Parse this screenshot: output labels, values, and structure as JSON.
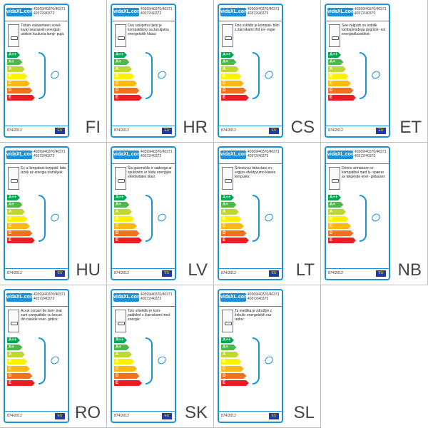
{
  "labels": [
    {
      "lang": "FI",
      "codes": "40369/40370/40371 40372/40373",
      "logo": "vidaXL.com",
      "desc": "Tähän valaisimeen sovel- tuvat seuraaviin energiat- uokkiin kuuluvia lamp- puja:",
      "reg": "874/2012",
      "eu": "EU",
      "classes": [
        "A++",
        "A+",
        "A",
        "B",
        "C",
        "D",
        "E"
      ]
    },
    {
      "lang": "HR",
      "codes": "40369/40370/40371 40372/40373",
      "logo": "vidaXL.com",
      "desc": "Ovo rasvjetno tijelo je kompatibilno sa žaruljama energetskih klasa:",
      "reg": "874/2012",
      "eu": "EU",
      "classes": [
        "A++",
        "A+",
        "A",
        "B",
        "C",
        "D",
        "E"
      ]
    },
    {
      "lang": "CS",
      "codes": "40369/40370/40371 40372/40373",
      "logo": "vidaXL.com",
      "desc": "Toto svítidlo je kompati- bilní s žárovkami tříd en- ergie:",
      "reg": "874/2012",
      "eu": "EU",
      "classes": [
        "A++",
        "A+",
        "A",
        "B",
        "C",
        "D",
        "E"
      ]
    },
    {
      "lang": "ET",
      "codes": "40369/40370/40371 40372/40373",
      "logo": "vidaXL.com",
      "desc": "See valgusti on sobilik lambipirnidega järgmist- est energiaklassidest:",
      "reg": "874/2012",
      "eu": "EU",
      "classes": [
        "A++",
        "A+",
        "A",
        "B",
        "C",
        "D",
        "E"
      ]
    },
    {
      "lang": "HU",
      "codes": "40369/40370/40371 40372/40373",
      "logo": "vidaXL.com",
      "desc": "Ez a lámpatest kompati- bilis izzók az energia osztályok:",
      "reg": "874/2012",
      "eu": "EU",
      "classes": [
        "A++",
        "A+",
        "A",
        "B",
        "C",
        "D",
        "E"
      ]
    },
    {
      "lang": "LV",
      "codes": "40369/40370/40371 40372/40373",
      "logo": "vidaXL.com",
      "desc": "Šis gaismeklis ir saderigs ar spuldzēm ar šādu enerģijas efektivitātes klasi:",
      "reg": "874/2012",
      "eu": "EU",
      "classes": [
        "A++",
        "A+",
        "A",
        "B",
        "C",
        "D",
        "E"
      ]
    },
    {
      "lang": "LT",
      "codes": "40369/40370/40371 40372/40373",
      "logo": "vidaXL.com",
      "desc": "Šviestuvui tinka šios en- ergijos efektyvumo klasės lemputės:",
      "reg": "874/2012",
      "eu": "EU",
      "classes": [
        "A++",
        "A+",
        "A",
        "B",
        "C",
        "D",
        "E"
      ]
    },
    {
      "lang": "NB",
      "codes": "40369/40370/40371 40372/40373",
      "logo": "vidaXL.com",
      "desc": "Denne armaturen er kompatibel med ly- spærer av følgende ener- giklasser:",
      "reg": "874/2012",
      "eu": "EU",
      "classes": [
        "A++",
        "A+",
        "A",
        "B",
        "C",
        "D",
        "E"
      ]
    },
    {
      "lang": "RO",
      "codes": "40369/40370/40371 40372/40373",
      "logo": "vidaXL.com",
      "desc": "Acest corpuri de ilum- inat sunt compatibile cu becuri din clasele ener- getice:",
      "reg": "874/2012",
      "eu": "EU",
      "classes": [
        "A++",
        "A+",
        "A",
        "B",
        "C",
        "D",
        "E"
      ]
    },
    {
      "lang": "SK",
      "codes": "40369/40370/40371 40372/40373",
      "logo": "vidaXL.com",
      "desc": "Toto svietidlo je kom- patibilné s žiarovkami tried energie:",
      "reg": "874/2012",
      "eu": "EU",
      "classes": [
        "A++",
        "A+",
        "A",
        "B",
        "C",
        "D",
        "E"
      ]
    },
    {
      "lang": "SL",
      "codes": "40369/40370/40371 40372/40373",
      "logo": "vidaXL.com",
      "desc": "Ta svetilka je združljiv z žebulic energetskih raz- redov:",
      "reg": "874/2012",
      "eu": "EU",
      "classes": [
        "A++",
        "A+",
        "A",
        "B",
        "C",
        "D",
        "E"
      ]
    }
  ],
  "class_colors": [
    "#00a651",
    "#50b848",
    "#bfd730",
    "#fff200",
    "#fdb913",
    "#f37021",
    "#ed1c24"
  ]
}
